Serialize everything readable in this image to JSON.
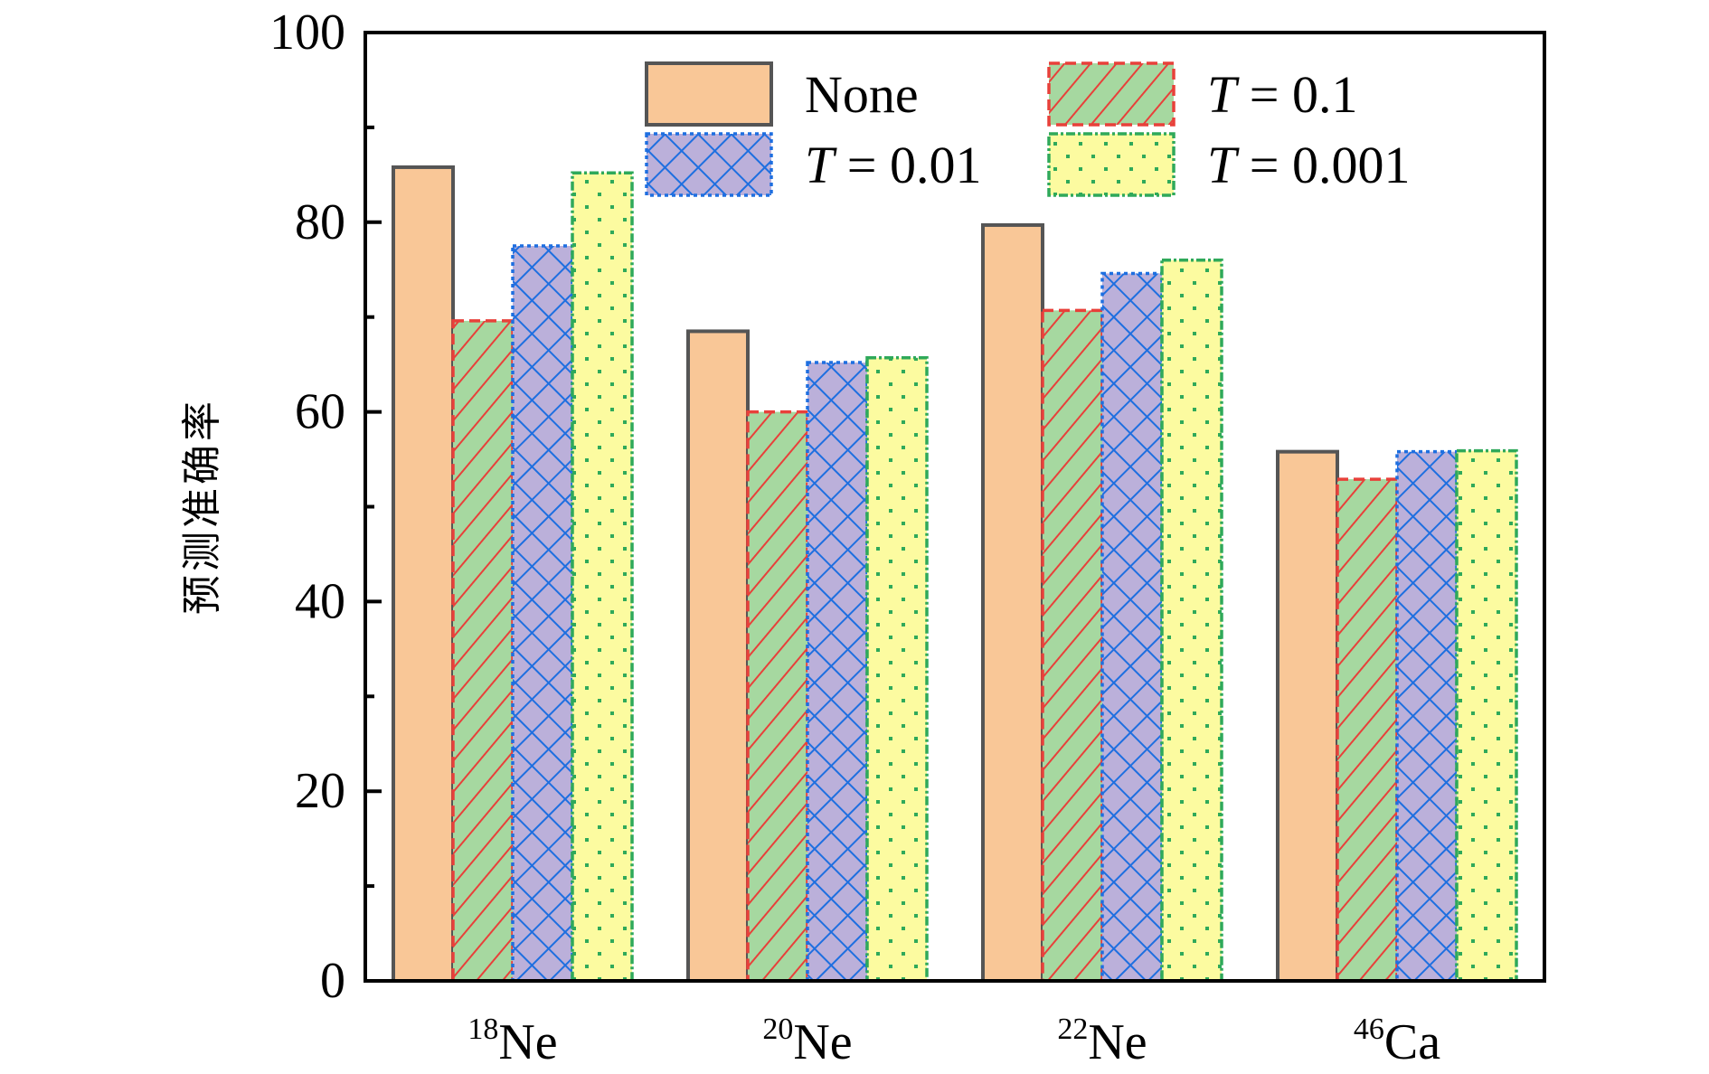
{
  "chart_data": {
    "type": "bar",
    "title": "",
    "xlabel": "",
    "ylabel": "预测准确率",
    "ylim": [
      0,
      100
    ],
    "yticks": [
      0,
      20,
      40,
      60,
      80,
      100
    ],
    "yminor_step": 10,
    "grid": false,
    "legend_position": "top-right",
    "categories": [
      {
        "mass": "18",
        "element": "Ne"
      },
      {
        "mass": "20",
        "element": "Ne"
      },
      {
        "mass": "22",
        "element": "Ne"
      },
      {
        "mass": "46",
        "element": "Ca"
      }
    ],
    "series": [
      {
        "name": "None",
        "italic_prefix": "",
        "label": "None",
        "fill": "#F9C797",
        "stroke": "#555555",
        "pattern": "solid",
        "dash": "",
        "values": [
          85.8,
          68.5,
          79.7,
          55.8
        ]
      },
      {
        "name": "T = 0.1",
        "italic_prefix": "T",
        "label": " = 0.1",
        "fill": "#A6D8A0",
        "stroke": "#E8403A",
        "pattern": "diagonal",
        "dash": "12,6",
        "values": [
          69.6,
          60.0,
          70.7,
          52.9
        ]
      },
      {
        "name": "T = 0.01",
        "italic_prefix": "T",
        "label": " = 0.01",
        "fill": "#BBB0DA",
        "stroke": "#1E6FE0",
        "pattern": "crosshatch",
        "dash": "4,4",
        "values": [
          77.5,
          65.2,
          74.6,
          55.8
        ]
      },
      {
        "name": "T = 0.001",
        "italic_prefix": "T",
        "label": " = 0.001",
        "fill": "#FCFBA0",
        "stroke": "#2FA95A",
        "pattern": "dots",
        "dash": "10,3,3,3",
        "values": [
          85.2,
          65.7,
          76.0,
          55.9
        ]
      }
    ]
  }
}
